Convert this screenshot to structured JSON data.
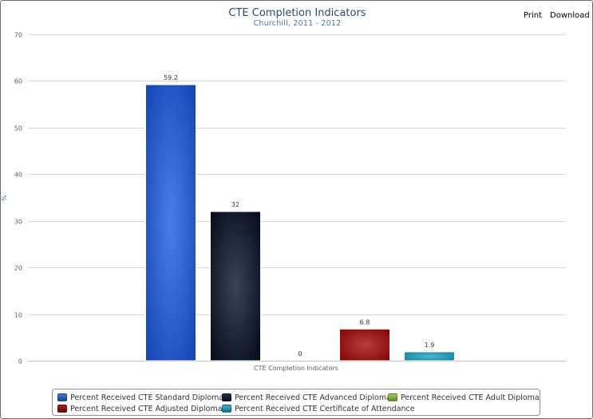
{
  "toolbar": {
    "print_label": "Print",
    "download_label": "Download"
  },
  "chart_data": {
    "type": "bar",
    "title": "CTE Completion Indicators",
    "subtitle": "Churchill, 2011 - 2012",
    "xlabel": "",
    "ylabel": "%",
    "categories": [
      "CTE Completion Indicators"
    ],
    "ylim": [
      0,
      70
    ],
    "yticks": [
      0,
      10,
      20,
      30,
      40,
      50,
      60,
      70
    ],
    "grid": true,
    "legend_position": "bottom",
    "series": [
      {
        "name": "Percent Received CTE Standard Diploma",
        "values": [
          59.2
        ],
        "label": "59.2",
        "color": "#1f4fbd"
      },
      {
        "name": "Percent Received CTE Advanced Diploma",
        "values": [
          32
        ],
        "label": "32",
        "color": "#0b1626"
      },
      {
        "name": "Percent Received CTE Adult Diploma",
        "values": [
          0
        ],
        "label": "0",
        "color": "#7fb338"
      },
      {
        "name": "Percent Received CTE Adjusted Diploma",
        "values": [
          6.8
        ],
        "label": "6.8",
        "color": "#8b0f0f"
      },
      {
        "name": "Percent Received CTE Certificate of Attendance",
        "values": [
          1.9
        ],
        "label": "1.9",
        "color": "#1a8ca8"
      }
    ]
  }
}
